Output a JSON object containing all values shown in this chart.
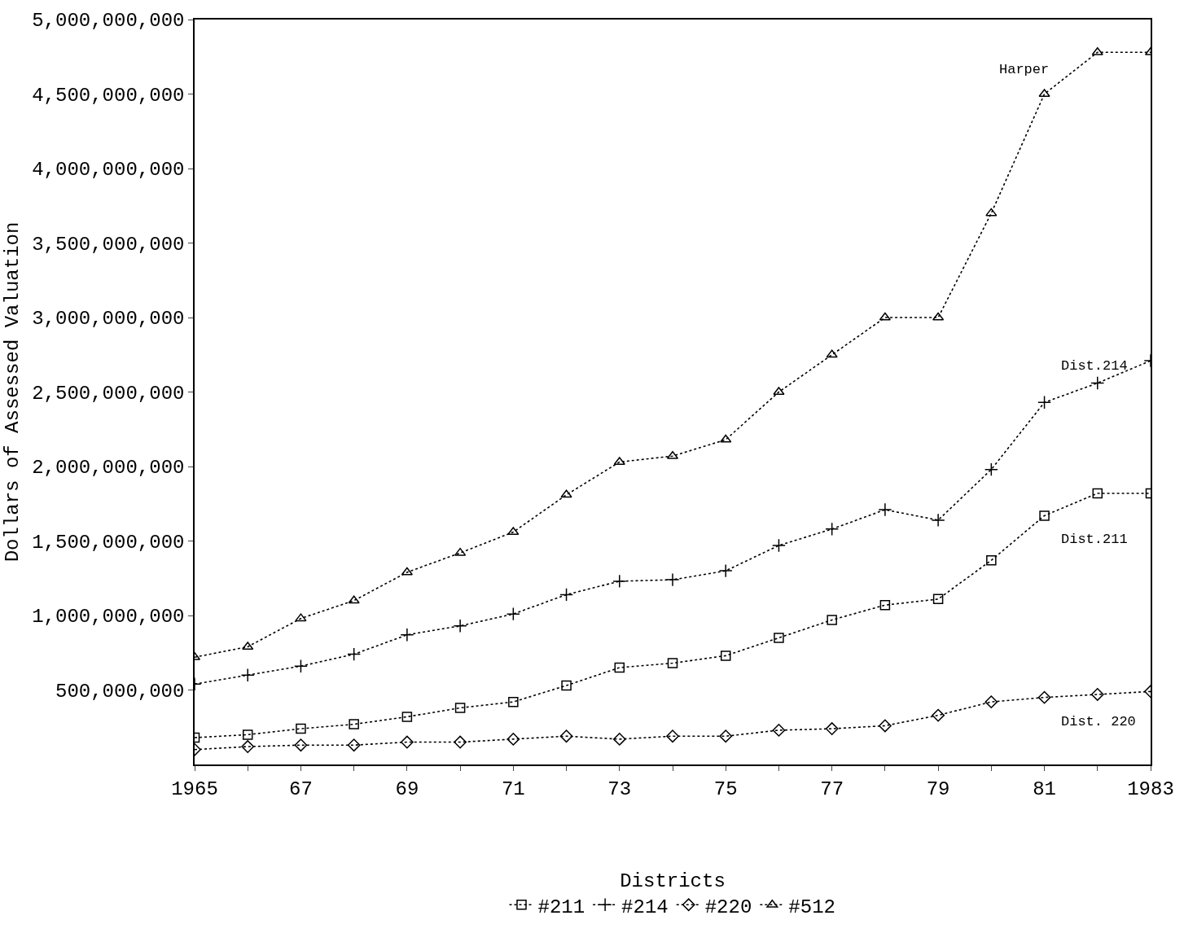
{
  "chart_data": {
    "type": "line",
    "ylabel": "Dollars of Assessed Valuation",
    "legend_title": "Districts",
    "legend": "bottom",
    "line_style": "dotted",
    "x": [
      1965,
      1966,
      1967,
      1968,
      1969,
      1970,
      1971,
      1972,
      1973,
      1974,
      1975,
      1976,
      1977,
      1978,
      1979,
      1980,
      1981,
      1982,
      1983
    ],
    "xlim": [
      1965,
      1983
    ],
    "xticks": [
      {
        "value": 1965,
        "label": "1965"
      },
      {
        "value": 1966,
        "label": null
      },
      {
        "value": 1967,
        "label": "67"
      },
      {
        "value": 1968,
        "label": null
      },
      {
        "value": 1969,
        "label": "69"
      },
      {
        "value": 1970,
        "label": null
      },
      {
        "value": 1971,
        "label": "71"
      },
      {
        "value": 1972,
        "label": null
      },
      {
        "value": 1973,
        "label": "73"
      },
      {
        "value": 1974,
        "label": null
      },
      {
        "value": 1975,
        "label": "75"
      },
      {
        "value": 1976,
        "label": null
      },
      {
        "value": 1977,
        "label": "77"
      },
      {
        "value": 1978,
        "label": null
      },
      {
        "value": 1979,
        "label": "79"
      },
      {
        "value": 1980,
        "label": null
      },
      {
        "value": 1981,
        "label": "81"
      },
      {
        "value": 1982,
        "label": null
      },
      {
        "value": 1983,
        "label": "1983"
      }
    ],
    "ylim": [
      0,
      5000000000
    ],
    "yticks": [
      {
        "value": 500000000,
        "label": "500,000,000"
      },
      {
        "value": 1000000000,
        "label": "1,000,000,000"
      },
      {
        "value": 1500000000,
        "label": "1,500,000,000"
      },
      {
        "value": 2000000000,
        "label": "2,000,000,000"
      },
      {
        "value": 2500000000,
        "label": "2,500,000,000"
      },
      {
        "value": 3000000000,
        "label": "3,000,000,000"
      },
      {
        "value": 3500000000,
        "label": "3,500,000,000"
      },
      {
        "value": 4000000000,
        "label": "4,000,000,000"
      },
      {
        "value": 4500000000,
        "label": "4,500,000,000"
      },
      {
        "value": 5000000000,
        "label": "5,000,000,000"
      }
    ],
    "series": [
      {
        "name": "#211",
        "color": "#000000",
        "marker": "square",
        "values": [
          180000000,
          200000000,
          240000000,
          270000000,
          320000000,
          380000000,
          420000000,
          530000000,
          650000000,
          680000000,
          730000000,
          850000000,
          970000000,
          1070000000,
          1110000000,
          1370000000,
          1670000000,
          1820000000,
          1820000000
        ]
      },
      {
        "name": "#214",
        "color": "#000000",
        "marker": "cross",
        "values": [
          540000000,
          600000000,
          660000000,
          740000000,
          870000000,
          930000000,
          1010000000,
          1140000000,
          1230000000,
          1240000000,
          1300000000,
          1470000000,
          1580000000,
          1710000000,
          1640000000,
          1980000000,
          2430000000,
          2560000000,
          2710000000
        ]
      },
      {
        "name": "#220",
        "color": "#000000",
        "marker": "diamond",
        "values": [
          100000000,
          120000000,
          130000000,
          130000000,
          150000000,
          150000000,
          170000000,
          190000000,
          170000000,
          190000000,
          190000000,
          230000000,
          240000000,
          260000000,
          330000000,
          420000000,
          450000000,
          470000000,
          490000000
        ]
      },
      {
        "name": "#512",
        "color": "#000000",
        "marker": "triangle",
        "values": [
          720000000,
          790000000,
          980000000,
          1100000000,
          1290000000,
          1420000000,
          1560000000,
          1810000000,
          2030000000,
          2070000000,
          2180000000,
          2500000000,
          2750000000,
          3000000000,
          3000000000,
          3700000000,
          4500000000,
          4780000000,
          4780000000
        ]
      }
    ],
    "annotations": [
      "Harper",
      "Dist.214",
      "Dist.211",
      "Dist. 220"
    ]
  }
}
